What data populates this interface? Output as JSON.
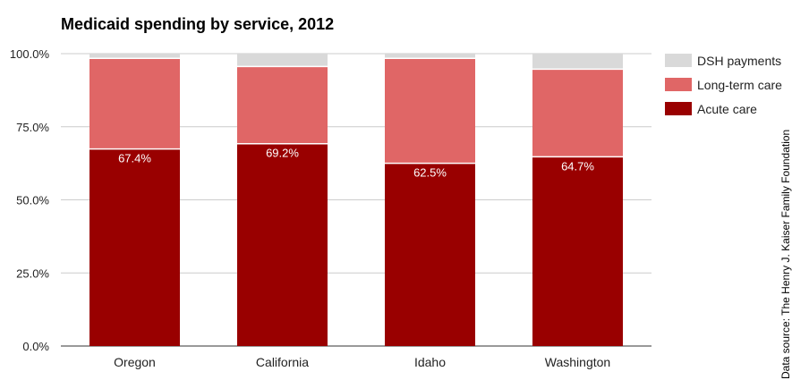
{
  "chart_data": {
    "type": "bar",
    "stacked": true,
    "title": "Medicaid spending by service, 2012",
    "categories": [
      "Oregon",
      "California",
      "Idaho",
      "Washington"
    ],
    "series": [
      {
        "name": "Acute care",
        "color": "#990000",
        "values": [
          67.4,
          69.2,
          62.5,
          64.7
        ],
        "data_labels": [
          "67.4%",
          "69.2%",
          "62.5%",
          "64.7%"
        ]
      },
      {
        "name": "Long-term care",
        "color": "#e06666",
        "values": [
          31.0,
          26.4,
          35.9,
          30.0
        ]
      },
      {
        "name": "DSH payments",
        "color": "#d9d9d9",
        "values": [
          1.6,
          4.4,
          1.6,
          5.3
        ]
      }
    ],
    "ylim": [
      0,
      100
    ],
    "yticks": [
      "0.0%",
      "25.0%",
      "50.0%",
      "75.0%",
      "100.0%"
    ],
    "grid": true,
    "legend": "right",
    "legend_order": [
      "DSH payments",
      "Long-term care",
      "Acute care"
    ],
    "source_note": "Data source: The Henry J. Kaiser Family Foundation"
  }
}
